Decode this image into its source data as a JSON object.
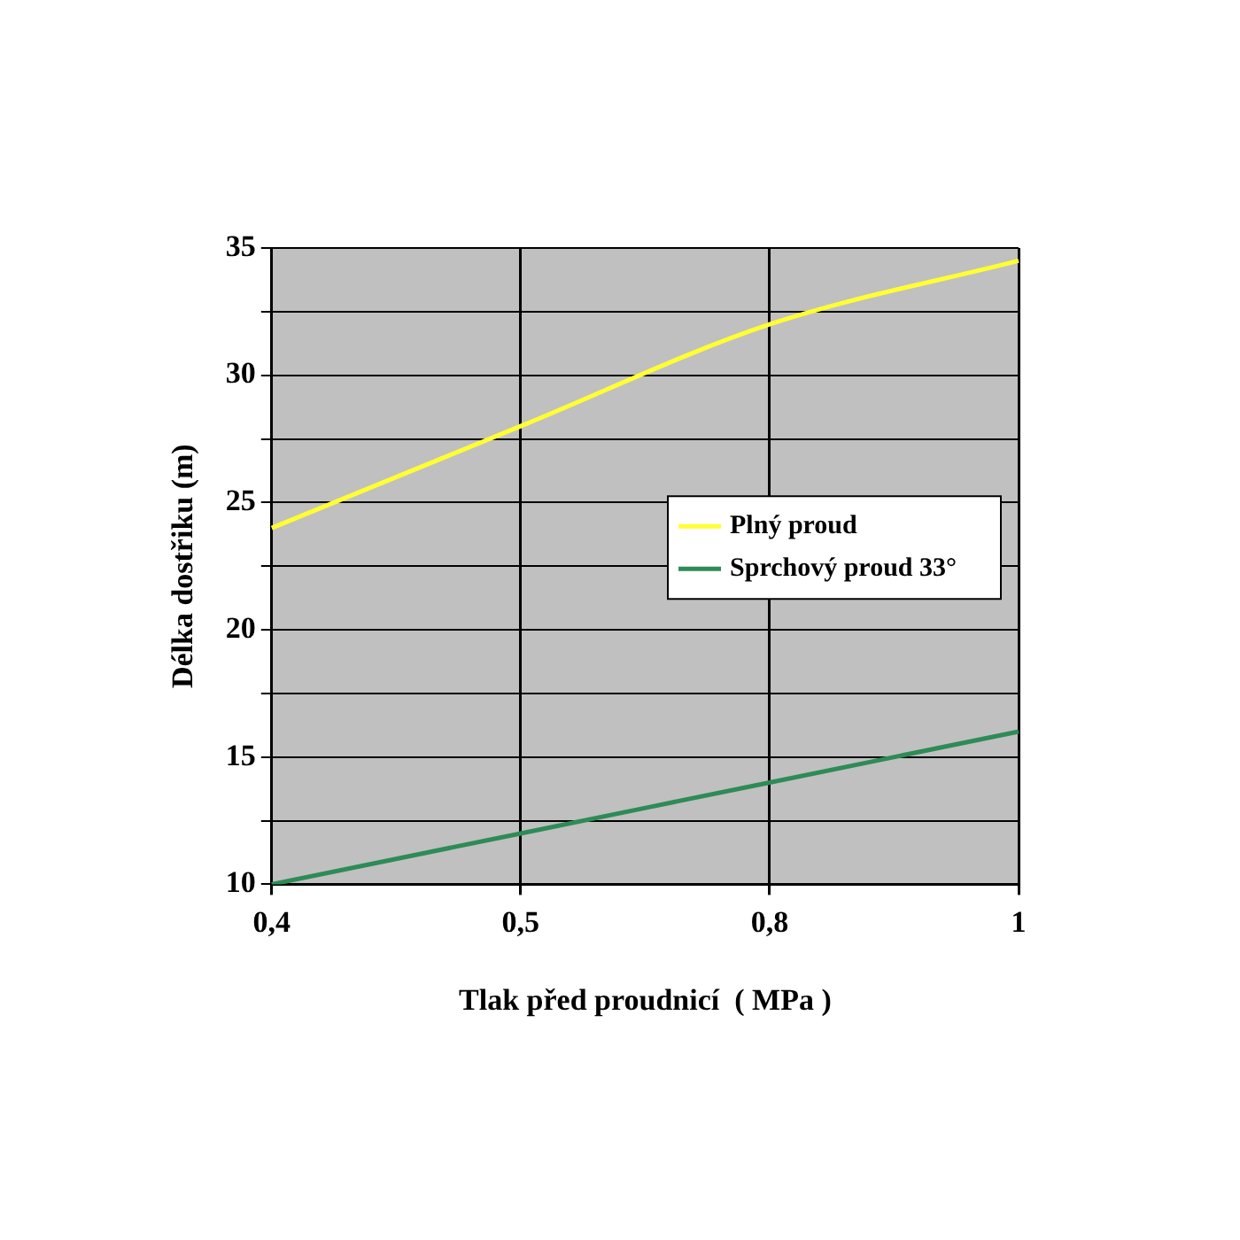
{
  "chart_data": {
    "type": "line",
    "xlabel": "Tlak před proudnicí  ( MPa )",
    "ylabel": "Délka dostřiku (m)",
    "categories": [
      "0,4",
      "0,5",
      "0,8",
      "1"
    ],
    "series": [
      {
        "name": "Plný proud",
        "color": "#ffff33",
        "values": [
          24,
          28,
          32,
          34.5
        ]
      },
      {
        "name": "Sprchový proud 33°",
        "color": "#2e8b57",
        "values": [
          10,
          12,
          14,
          16
        ]
      }
    ],
    "ylim": [
      10,
      35
    ],
    "yticks": [
      10,
      {
        "value": 12.5,
        "label": null
      },
      15,
      {
        "value": 17.5,
        "label": null
      },
      20,
      {
        "value": 22.5,
        "label": null
      },
      25,
      {
        "value": 27.5,
        "label": null
      },
      30,
      {
        "value": 32.5,
        "label": null
      },
      35
    ],
    "grid": true,
    "legend": "right",
    "marker": "none",
    "line_style": "solid"
  }
}
